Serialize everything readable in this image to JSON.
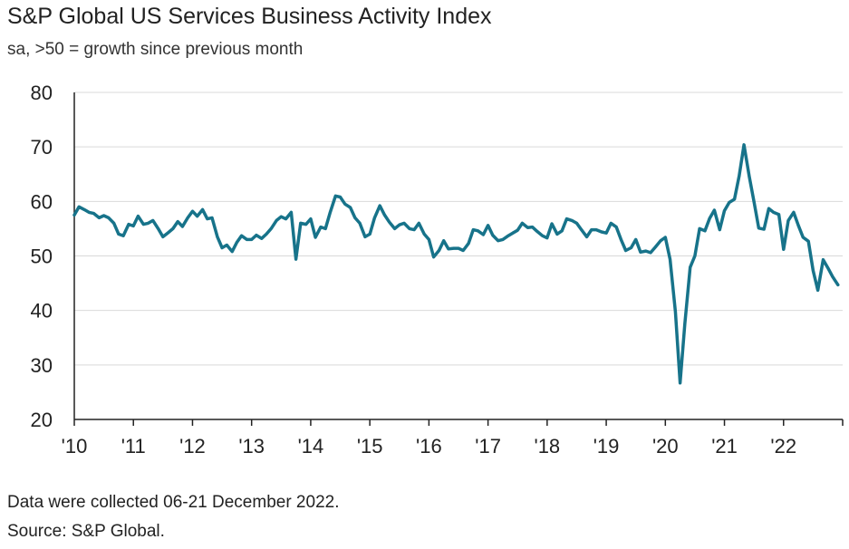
{
  "header": {
    "title": "S&P Global US Services Business Activity Index",
    "subtitle": "sa, >50 = growth since previous month"
  },
  "footer": {
    "note": "Data were collected 06-21 December 2022.",
    "source": "Source: S&P Global."
  },
  "colors": {
    "series": "#17738A",
    "axis": "#222222",
    "grid": "#d9d9d9"
  },
  "chart_data": {
    "type": "line",
    "title": "S&P Global US Services Business Activity Index",
    "subtitle": "sa, >50 = growth since previous month",
    "ylim": [
      20,
      80
    ],
    "yticks": [
      20,
      30,
      40,
      50,
      60,
      70,
      80
    ],
    "xlim": [
      2010.0,
      2023.0
    ],
    "xtick_values": [
      2010,
      2011,
      2012,
      2013,
      2014,
      2015,
      2016,
      2017,
      2018,
      2019,
      2020,
      2021,
      2022
    ],
    "xtick_labels": [
      "'10",
      "'11",
      "'12",
      "'13",
      "'14",
      "'15",
      "'16",
      "'17",
      "'18",
      "'19",
      "'20",
      "'21",
      "'22"
    ],
    "grid": "horizontal",
    "legend": "none",
    "series": [
      {
        "points": [
          [
            2010.0,
            57.5
          ],
          [
            2010.08,
            59.0
          ],
          [
            2010.17,
            58.5
          ],
          [
            2010.25,
            58.0
          ],
          [
            2010.33,
            57.8
          ],
          [
            2010.42,
            57.0
          ],
          [
            2010.5,
            57.4
          ],
          [
            2010.58,
            57.0
          ],
          [
            2010.67,
            56.0
          ],
          [
            2010.75,
            54.0
          ],
          [
            2010.83,
            53.7
          ],
          [
            2010.92,
            55.8
          ],
          [
            2011.0,
            55.5
          ],
          [
            2011.08,
            57.3
          ],
          [
            2011.17,
            55.8
          ],
          [
            2011.25,
            56.0
          ],
          [
            2011.33,
            56.5
          ],
          [
            2011.42,
            55.0
          ],
          [
            2011.5,
            53.5
          ],
          [
            2011.58,
            54.2
          ],
          [
            2011.67,
            55.0
          ],
          [
            2011.75,
            56.3
          ],
          [
            2011.83,
            55.4
          ],
          [
            2011.92,
            57.0
          ],
          [
            2012.0,
            58.2
          ],
          [
            2012.08,
            57.3
          ],
          [
            2012.17,
            58.5
          ],
          [
            2012.25,
            56.8
          ],
          [
            2012.33,
            57.0
          ],
          [
            2012.42,
            53.5
          ],
          [
            2012.5,
            51.5
          ],
          [
            2012.58,
            52.0
          ],
          [
            2012.67,
            50.8
          ],
          [
            2012.75,
            52.5
          ],
          [
            2012.83,
            53.7
          ],
          [
            2012.92,
            53.0
          ],
          [
            2013.0,
            53.0
          ],
          [
            2013.08,
            53.8
          ],
          [
            2013.17,
            53.2
          ],
          [
            2013.25,
            54.0
          ],
          [
            2013.33,
            55.0
          ],
          [
            2013.42,
            56.5
          ],
          [
            2013.5,
            57.2
          ],
          [
            2013.58,
            56.8
          ],
          [
            2013.67,
            58.0
          ],
          [
            2013.75,
            49.4
          ],
          [
            2013.83,
            56.0
          ],
          [
            2013.92,
            55.8
          ],
          [
            2014.0,
            56.8
          ],
          [
            2014.08,
            53.4
          ],
          [
            2014.17,
            55.3
          ],
          [
            2014.25,
            55.0
          ],
          [
            2014.33,
            58.0
          ],
          [
            2014.42,
            61.0
          ],
          [
            2014.5,
            60.8
          ],
          [
            2014.58,
            59.5
          ],
          [
            2014.67,
            58.9
          ],
          [
            2014.75,
            57.0
          ],
          [
            2014.83,
            56.0
          ],
          [
            2014.92,
            53.5
          ],
          [
            2015.0,
            54.0
          ],
          [
            2015.08,
            57.0
          ],
          [
            2015.17,
            59.2
          ],
          [
            2015.25,
            57.5
          ],
          [
            2015.33,
            56.2
          ],
          [
            2015.42,
            55.0
          ],
          [
            2015.5,
            55.7
          ],
          [
            2015.58,
            56.0
          ],
          [
            2015.67,
            55.0
          ],
          [
            2015.75,
            54.8
          ],
          [
            2015.83,
            56.0
          ],
          [
            2015.92,
            54.0
          ],
          [
            2016.0,
            53.0
          ],
          [
            2016.08,
            49.8
          ],
          [
            2016.17,
            51.0
          ],
          [
            2016.25,
            52.8
          ],
          [
            2016.33,
            51.3
          ],
          [
            2016.42,
            51.4
          ],
          [
            2016.5,
            51.4
          ],
          [
            2016.58,
            51.0
          ],
          [
            2016.67,
            52.3
          ],
          [
            2016.75,
            54.8
          ],
          [
            2016.83,
            54.6
          ],
          [
            2016.92,
            53.9
          ],
          [
            2017.0,
            55.6
          ],
          [
            2017.08,
            53.8
          ],
          [
            2017.17,
            52.8
          ],
          [
            2017.25,
            53.0
          ],
          [
            2017.33,
            53.6
          ],
          [
            2017.42,
            54.2
          ],
          [
            2017.5,
            54.7
          ],
          [
            2017.58,
            56.0
          ],
          [
            2017.67,
            55.2
          ],
          [
            2017.75,
            55.3
          ],
          [
            2017.83,
            54.5
          ],
          [
            2017.92,
            53.7
          ],
          [
            2018.0,
            53.3
          ],
          [
            2018.08,
            55.9
          ],
          [
            2018.17,
            54.0
          ],
          [
            2018.25,
            54.6
          ],
          [
            2018.33,
            56.8
          ],
          [
            2018.42,
            56.5
          ],
          [
            2018.5,
            56.0
          ],
          [
            2018.58,
            54.8
          ],
          [
            2018.67,
            53.5
          ],
          [
            2018.75,
            54.8
          ],
          [
            2018.83,
            54.8
          ],
          [
            2018.92,
            54.4
          ],
          [
            2019.0,
            54.2
          ],
          [
            2019.08,
            56.0
          ],
          [
            2019.17,
            55.3
          ],
          [
            2019.25,
            53.0
          ],
          [
            2019.33,
            51.0
          ],
          [
            2019.42,
            51.5
          ],
          [
            2019.5,
            53.0
          ],
          [
            2019.58,
            50.7
          ],
          [
            2019.67,
            50.9
          ],
          [
            2019.75,
            50.6
          ],
          [
            2019.83,
            51.6
          ],
          [
            2019.92,
            52.8
          ],
          [
            2020.0,
            53.4
          ],
          [
            2020.08,
            49.4
          ],
          [
            2020.17,
            39.8
          ],
          [
            2020.25,
            26.7
          ],
          [
            2020.33,
            37.5
          ],
          [
            2020.42,
            47.9
          ],
          [
            2020.5,
            50.0
          ],
          [
            2020.58,
            55.0
          ],
          [
            2020.67,
            54.6
          ],
          [
            2020.75,
            56.9
          ],
          [
            2020.83,
            58.4
          ],
          [
            2020.92,
            54.8
          ],
          [
            2021.0,
            58.3
          ],
          [
            2021.08,
            59.8
          ],
          [
            2021.17,
            60.4
          ],
          [
            2021.25,
            64.7
          ],
          [
            2021.33,
            70.4
          ],
          [
            2021.42,
            64.6
          ],
          [
            2021.5,
            59.9
          ],
          [
            2021.58,
            55.1
          ],
          [
            2021.67,
            54.9
          ],
          [
            2021.75,
            58.7
          ],
          [
            2021.83,
            58.0
          ],
          [
            2021.92,
            57.6
          ],
          [
            2022.0,
            51.2
          ],
          [
            2022.08,
            56.5
          ],
          [
            2022.17,
            58.0
          ],
          [
            2022.25,
            55.6
          ],
          [
            2022.33,
            53.4
          ],
          [
            2022.42,
            52.7
          ],
          [
            2022.5,
            47.3
          ],
          [
            2022.58,
            43.7
          ],
          [
            2022.67,
            49.3
          ],
          [
            2022.75,
            47.8
          ],
          [
            2022.83,
            46.2
          ],
          [
            2022.92,
            44.7
          ]
        ]
      }
    ]
  }
}
